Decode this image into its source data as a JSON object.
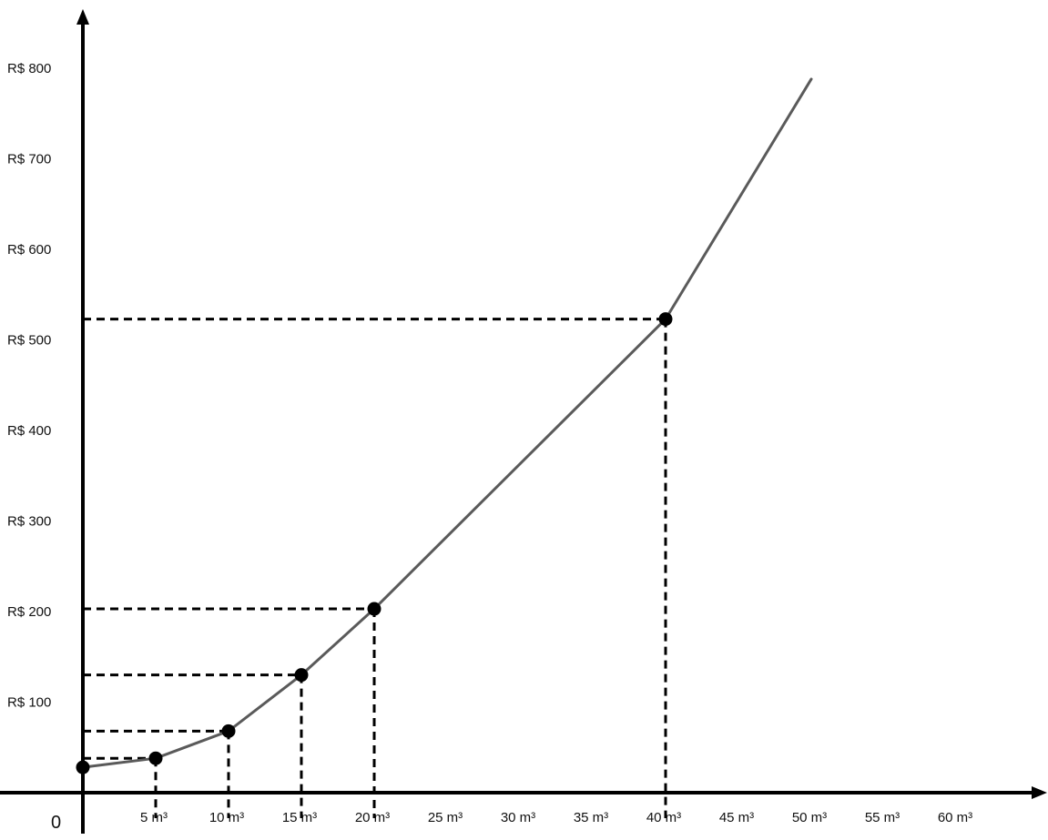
{
  "chart_data": {
    "type": "line",
    "title": "",
    "xlabel": "",
    "ylabel": "",
    "origin_label": "0",
    "xlim": [
      0,
      65
    ],
    "ylim": [
      0,
      820
    ],
    "x_ticks": [
      {
        "value": 5,
        "label": "5 m³"
      },
      {
        "value": 10,
        "label": "10 m³"
      },
      {
        "value": 15,
        "label": "15 m³"
      },
      {
        "value": 20,
        "label": "20 m³"
      },
      {
        "value": 25,
        "label": "25 m³"
      },
      {
        "value": 30,
        "label": "30 m³"
      },
      {
        "value": 35,
        "label": "35 m³"
      },
      {
        "value": 40,
        "label": "40 m³"
      },
      {
        "value": 45,
        "label": "45 m³"
      },
      {
        "value": 50,
        "label": "50 m³"
      },
      {
        "value": 55,
        "label": "55 m³"
      },
      {
        "value": 60,
        "label": "60 m³"
      }
    ],
    "y_ticks": [
      {
        "value": 100,
        "label": "R$ 100"
      },
      {
        "value": 200,
        "label": "R$ 200"
      },
      {
        "value": 300,
        "label": "R$ 300"
      },
      {
        "value": 400,
        "label": "R$ 400"
      },
      {
        "value": 500,
        "label": "R$ 500"
      },
      {
        "value": 600,
        "label": "R$ 600"
      },
      {
        "value": 700,
        "label": "R$ 700"
      },
      {
        "value": 800,
        "label": "R$ 800"
      }
    ],
    "series": [
      {
        "points": [
          {
            "x": 0,
            "y": 28
          },
          {
            "x": 5,
            "y": 38
          },
          {
            "x": 10,
            "y": 68
          },
          {
            "x": 15,
            "y": 130
          },
          {
            "x": 20,
            "y": 203
          },
          {
            "x": 40,
            "y": 523
          },
          {
            "x": 50,
            "y": 788
          }
        ]
      }
    ],
    "marked_points": [
      {
        "x": 0,
        "y": 28
      },
      {
        "x": 5,
        "y": 38
      },
      {
        "x": 10,
        "y": 68
      },
      {
        "x": 15,
        "y": 130
      },
      {
        "x": 20,
        "y": 203
      },
      {
        "x": 40,
        "y": 523
      }
    ],
    "guide_lines": [
      {
        "x": 5,
        "y": 38,
        "style": "dashed"
      },
      {
        "x": 10,
        "y": 68,
        "style": "dashed"
      },
      {
        "x": 15,
        "y": 130,
        "style": "dashed"
      },
      {
        "x": 20,
        "y": 203,
        "style": "dashed"
      },
      {
        "x": 40,
        "y": 523,
        "style": "dashed"
      }
    ],
    "grid": false,
    "legend": "none",
    "colors": {
      "axis": "#000000",
      "line": "#5a5a5a",
      "marker": "#000000",
      "guide": "#000000"
    }
  }
}
